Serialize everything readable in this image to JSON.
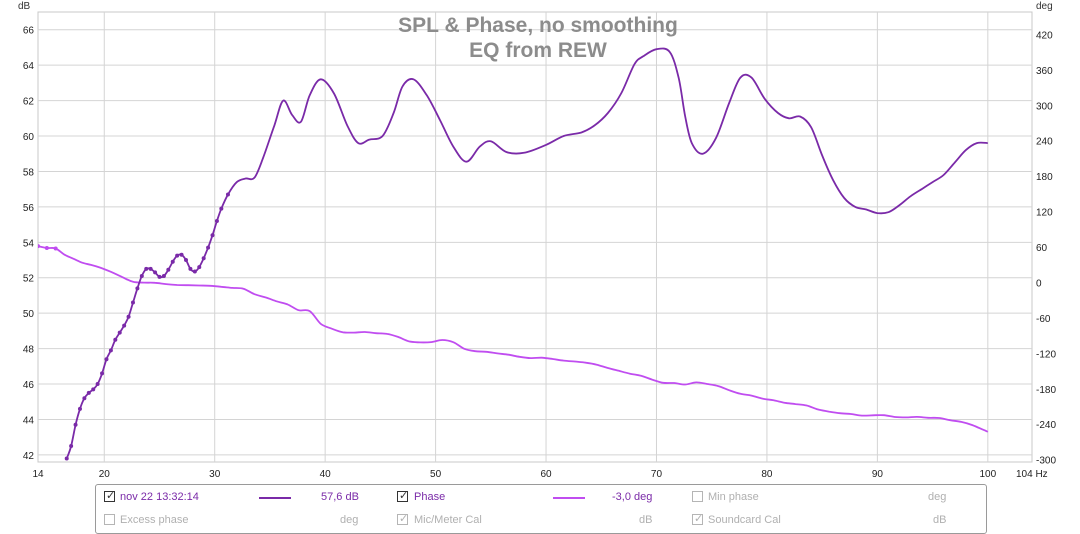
{
  "chart_data": {
    "type": "line",
    "title": "SPL & Phase, no smoothing",
    "subtitle": "EQ from REW",
    "y_left_label": "dB",
    "y_right_label": "deg",
    "x_unit": "Hz",
    "xlim": [
      14,
      104
    ],
    "ylim_left": [
      41.6,
      67
    ],
    "ylim_right": [
      -304,
      458
    ],
    "x_ticks": [
      14,
      20,
      30,
      40,
      50,
      60,
      70,
      80,
      90,
      100,
      104
    ],
    "x_tick_labels": [
      "14",
      "20",
      "30",
      "40",
      "50",
      "60",
      "70",
      "80",
      "90",
      "100",
      "104 Hz"
    ],
    "y_left_ticks": [
      42,
      44,
      46,
      48,
      50,
      52,
      54,
      56,
      58,
      60,
      62,
      64,
      66
    ],
    "y_right_ticks": [
      -300,
      -240,
      -180,
      -120,
      -60,
      0,
      60,
      120,
      180,
      240,
      300,
      360,
      420
    ],
    "grid": true,
    "legend_position": "bottom",
    "series": [
      {
        "name": "nov 22 13:32:14",
        "axis": "left",
        "color": "#7a2aa8",
        "x": [
          16.6,
          17.0,
          17.4,
          17.8,
          18.2,
          18.6,
          19.0,
          19.4,
          19.8,
          20.2,
          20.6,
          21.0,
          21.4,
          21.8,
          22.2,
          22.6,
          23.0,
          23.4,
          23.8,
          24.2,
          24.6,
          25.0,
          25.4,
          25.8,
          26.2,
          26.6,
          27.0,
          27.4,
          27.8,
          28.2,
          28.6,
          29.0,
          29.4,
          29.8,
          30.2,
          30.6,
          31.2,
          32.0,
          32.8,
          33.6,
          34.4,
          35.4,
          36.2,
          37.0,
          37.8,
          38.6,
          39.6,
          40.8,
          42.0,
          43.0,
          44.0,
          45.2,
          46.2,
          47.0,
          48.0,
          49.2,
          50.4,
          51.6,
          52.8,
          54.0,
          55.0,
          56.4,
          58.0,
          60.0,
          61.6,
          63.2,
          64.4,
          65.6,
          66.8,
          68.0,
          68.8,
          70.0,
          71.2,
          72.0,
          72.6,
          73.2,
          74.2,
          75.4,
          76.6,
          77.6,
          78.6,
          79.8,
          81.0,
          82.0,
          83.0,
          84.0,
          85.0,
          86.0,
          87.0,
          88.0,
          89.0,
          90.0,
          91.0,
          92.0,
          93.0,
          94.0,
          95.0,
          96.0,
          97.0,
          98.0,
          99.0,
          100.0
        ],
        "values": [
          41.8,
          42.5,
          43.7,
          44.6,
          45.2,
          45.5,
          45.7,
          46.0,
          46.6,
          47.4,
          47.9,
          48.5,
          48.9,
          49.3,
          49.8,
          50.6,
          51.4,
          52.1,
          52.5,
          52.5,
          52.3,
          52.05,
          52.1,
          52.45,
          52.9,
          53.25,
          53.3,
          53.0,
          52.5,
          52.35,
          52.6,
          53.1,
          53.7,
          54.4,
          55.2,
          55.9,
          56.7,
          57.4,
          57.6,
          57.65,
          58.8,
          60.6,
          62.0,
          61.2,
          60.8,
          62.3,
          63.2,
          62.4,
          60.6,
          59.6,
          59.8,
          60.0,
          61.3,
          62.8,
          63.2,
          62.3,
          60.9,
          59.4,
          58.55,
          59.4,
          59.7,
          59.1,
          59.05,
          59.5,
          60.0,
          60.2,
          60.6,
          61.3,
          62.4,
          64.05,
          64.5,
          64.9,
          64.75,
          63.3,
          61.1,
          59.6,
          59.0,
          59.9,
          61.9,
          63.3,
          63.3,
          62.1,
          61.3,
          61.0,
          61.1,
          60.5,
          58.9,
          57.5,
          56.5,
          56.0,
          55.85,
          55.65,
          55.7,
          56.1,
          56.6,
          57.0,
          57.4,
          57.8,
          58.5,
          59.2,
          59.6,
          59.6
        ]
      },
      {
        "name": "Phase",
        "axis": "right",
        "color": "#c04df0",
        "x": [
          14.0,
          14.8,
          15.6,
          16.4,
          17.2,
          18.0,
          18.8,
          19.6,
          20.6,
          21.6,
          22.6,
          23.6,
          24.6,
          25.6,
          26.6,
          27.6,
          28.6,
          29.6,
          30.6,
          31.6,
          32.6,
          33.6,
          34.6,
          35.6,
          36.6,
          37.6,
          38.6,
          39.6,
          40.6,
          41.6,
          42.6,
          43.6,
          44.6,
          45.6,
          46.6,
          47.6,
          48.6,
          49.6,
          50.6,
          51.6,
          52.6,
          53.6,
          54.6,
          55.6,
          56.6,
          57.6,
          58.6,
          59.6,
          60.6,
          61.6,
          62.6,
          63.6,
          64.6,
          65.6,
          66.6,
          67.6,
          68.6,
          69.6,
          70.6,
          71.6,
          72.6,
          73.6,
          74.6,
          75.6,
          76.6,
          77.6,
          78.6,
          79.6,
          80.6,
          81.6,
          82.6,
          83.6,
          84.6,
          85.6,
          86.6,
          87.6,
          88.6,
          89.6,
          90.6,
          91.6,
          92.6,
          93.6,
          94.6,
          95.6,
          96.6,
          97.6,
          98.6,
          99.6,
          100.0
        ],
        "values": [
          61.6,
          58.4,
          57.6,
          47.1,
          40.3,
          33.5,
          29.7,
          25.3,
          18.0,
          9.4,
          1.1,
          -0.3,
          -0.5,
          -2.8,
          -4.2,
          -4.7,
          -5.1,
          -5.6,
          -7.3,
          -9.2,
          -10.6,
          -19.8,
          -25.2,
          -31.8,
          -37.2,
          -46.9,
          -48.4,
          -69.9,
          -78.2,
          -84.3,
          -84.8,
          -83.9,
          -85.9,
          -87.0,
          -92.2,
          -99.7,
          -101.4,
          -100.9,
          -97.4,
          -101.1,
          -112.3,
          -116.4,
          -117.4,
          -120.1,
          -122.3,
          -125.9,
          -128.1,
          -127.4,
          -129.6,
          -132.3,
          -133.9,
          -135.8,
          -139.3,
          -144.9,
          -149.6,
          -154.5,
          -158.0,
          -164.4,
          -169.9,
          -170.3,
          -172.7,
          -169.2,
          -171.9,
          -175.4,
          -182.6,
          -188.5,
          -191.6,
          -196.6,
          -199.6,
          -203.7,
          -205.9,
          -208.4,
          -214.9,
          -218.6,
          -221.4,
          -222.8,
          -225.4,
          -224.9,
          -224.7,
          -227.8,
          -228.5,
          -227.6,
          -229.2,
          -229.5,
          -233.3,
          -236.1,
          -241.6,
          -249.5,
          -252.8
        ]
      }
    ]
  },
  "legend": {
    "row1": [
      {
        "checked": true,
        "label": "nov 22 13:32:14",
        "value": "57,6 dB",
        "color": "#7a2aa8"
      },
      {
        "checked": true,
        "label": "Phase",
        "value": "-3,0 deg",
        "color": "#c04df0"
      },
      {
        "checked": false,
        "label": "Min phase",
        "unit": "deg"
      }
    ],
    "row2": [
      {
        "checked": false,
        "label": "Excess phase",
        "unit": "deg"
      },
      {
        "checked": true,
        "disabled": true,
        "label": "Mic/Meter Cal",
        "unit": "dB"
      },
      {
        "checked": true,
        "disabled": true,
        "label": "Soundcard Cal",
        "unit": "dB"
      }
    ]
  }
}
